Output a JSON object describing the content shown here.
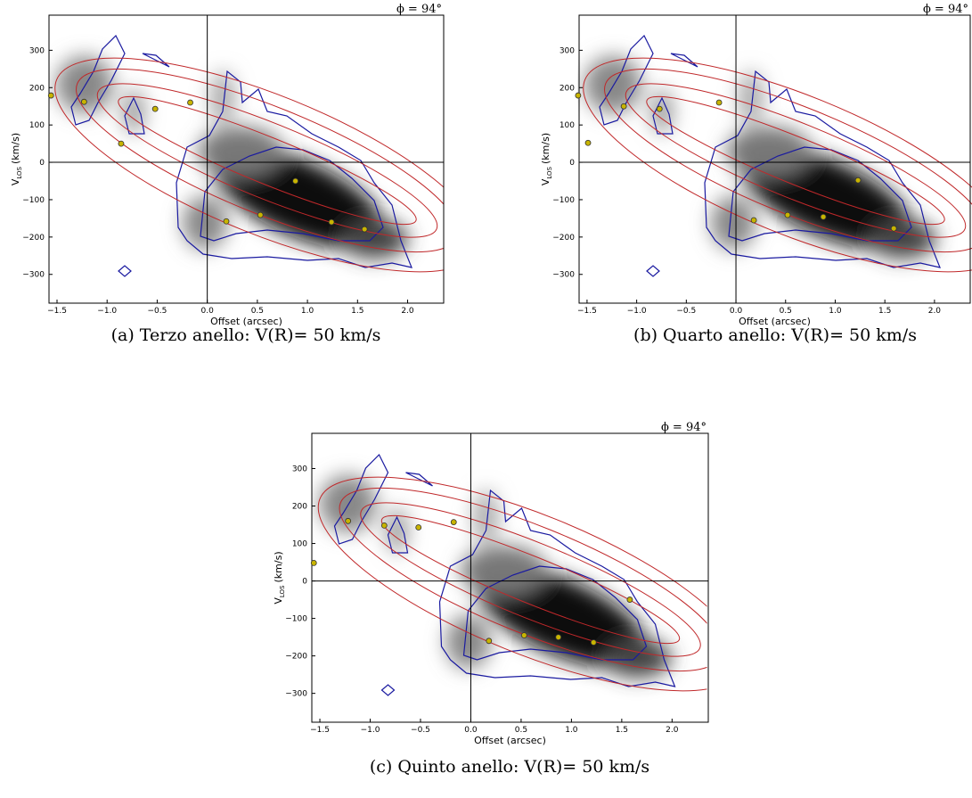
{
  "chart_data": [
    {
      "type": "scatter",
      "caption": "(a) Terzo anello: V(R)= 50 km/s",
      "annotation": "ϕ = 94°",
      "xlabel": "Offset (arcsec)",
      "ylabel": [
        "V",
        "LOS",
        "(km/s)"
      ],
      "color": "#c8b400",
      "x": [
        -1.56,
        -1.23,
        -0.86,
        -0.52,
        -0.17,
        0.88,
        0.19,
        0.53,
        1.24,
        1.57
      ],
      "y": [
        179,
        162,
        50,
        143,
        160,
        -50,
        -158,
        -141,
        -160,
        -179
      ],
      "xlim": [
        -1.58,
        2.36
      ],
      "ylim": [
        -377,
        394
      ],
      "xticks": [
        {
          "value": -1.5,
          "label": "−1.5"
        },
        {
          "value": -1.0,
          "label": "−1.0"
        },
        {
          "value": -0.5,
          "label": "−0.5"
        },
        {
          "value": 0,
          "label": "0.0"
        },
        0.5,
        {
          "value": 1.0,
          "label": "1.0"
        },
        1.5,
        {
          "value": 2.0,
          "label": "2.0"
        }
      ],
      "yticks": [
        300,
        200,
        100,
        0,
        {
          "value": -100,
          "label": "−100"
        },
        {
          "value": -200,
          "label": "−200"
        },
        {
          "value": -300,
          "label": "−300"
        }
      ]
    },
    {
      "type": "scatter",
      "caption": "(b) Quarto anello: V(R)= 50 km/s",
      "annotation": "ϕ = 94°",
      "xlabel": "Offset (arcsec)",
      "ylabel": [
        "V",
        "LOS",
        "(km/s)"
      ],
      "color": "#c8b400",
      "x": [
        -1.59,
        -1.49,
        -1.13,
        -0.77,
        -0.17,
        0.18,
        0.52,
        0.88,
        1.23,
        1.59
      ],
      "y": [
        179,
        52,
        150,
        143,
        160,
        -155,
        -141,
        -146,
        -48,
        -177
      ],
      "xlim": [
        -1.58,
        2.36
      ],
      "ylim": [
        -377,
        394
      ],
      "xticks": [
        {
          "value": -1.5,
          "label": "−1.5"
        },
        {
          "value": -1.0,
          "label": "−1.0"
        },
        {
          "value": -0.5,
          "label": "−0.5"
        },
        {
          "value": 0,
          "label": "0.0"
        },
        0.5,
        {
          "value": 1.0,
          "label": "1.0"
        },
        1.5,
        {
          "value": 2.0,
          "label": "2.0"
        }
      ],
      "yticks": [
        300,
        200,
        100,
        0,
        {
          "value": -100,
          "label": "−100"
        },
        {
          "value": -200,
          "label": "−200"
        },
        {
          "value": -300,
          "label": "−300"
        }
      ]
    },
    {
      "type": "scatter",
      "caption": "(c) Quinto anello: V(R)= 50 km/s",
      "annotation": "ϕ = 94°",
      "xlabel": "Offset (arcsec)",
      "ylabel": [
        "V",
        "LOS",
        "(km/s)"
      ],
      "color": "#c8b400",
      "x": [
        -1.56,
        -1.22,
        -0.86,
        -0.52,
        -0.17,
        0.18,
        0.53,
        0.87,
        1.22,
        1.58
      ],
      "y": [
        48,
        160,
        148,
        143,
        157,
        -160,
        -145,
        -150,
        -164,
        -50
      ],
      "xlim": [
        -1.58,
        2.36
      ],
      "ylim": [
        -377,
        394
      ],
      "xticks": [
        {
          "value": -1.5,
          "label": "−1.5"
        },
        {
          "value": -1.0,
          "label": "−1.0"
        },
        {
          "value": -0.5,
          "label": "−0.5"
        },
        {
          "value": 0,
          "label": "0.0"
        },
        0.5,
        {
          "value": 1.0,
          "label": "1.0"
        },
        1.5,
        {
          "value": 2.0,
          "label": "2.0"
        }
      ],
      "yticks": [
        300,
        200,
        100,
        0,
        {
          "value": -100,
          "label": "−100"
        },
        {
          "value": -200,
          "label": "−200"
        },
        {
          "value": -300,
          "label": "−300"
        }
      ]
    }
  ]
}
